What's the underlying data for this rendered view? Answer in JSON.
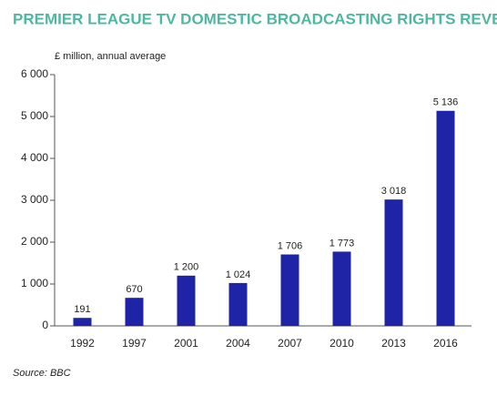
{
  "chart_data": {
    "type": "bar",
    "title": "PREMIER LEAGUE TV DOMESTIC BROADCASTING RIGHTS REVENUE",
    "y_label": "£ million, annual average",
    "source": "Source: BBC",
    "categories": [
      "1992",
      "1997",
      "2001",
      "2004",
      "2007",
      "2010",
      "2013",
      "2016"
    ],
    "values": [
      191,
      670,
      1200,
      1024,
      1706,
      1773,
      3018,
      5136
    ],
    "value_labels": [
      "191",
      "670",
      "1 200",
      "1 024",
      "1 706",
      "1 773",
      "3 018",
      "5 136"
    ],
    "color": "#1f24a6",
    "ylim": [
      0,
      6000
    ],
    "yticks": [
      {
        "value": 0,
        "label": "0"
      },
      {
        "value": 1000,
        "label": "1 000"
      },
      {
        "value": 2000,
        "label": "2 000"
      },
      {
        "value": 3000,
        "label": "3 000"
      },
      {
        "value": 4000,
        "label": "4 000"
      },
      {
        "value": 5000,
        "label": "5 000"
      },
      {
        "value": 6000,
        "label": "6 000"
      }
    ],
    "grid": false
  }
}
